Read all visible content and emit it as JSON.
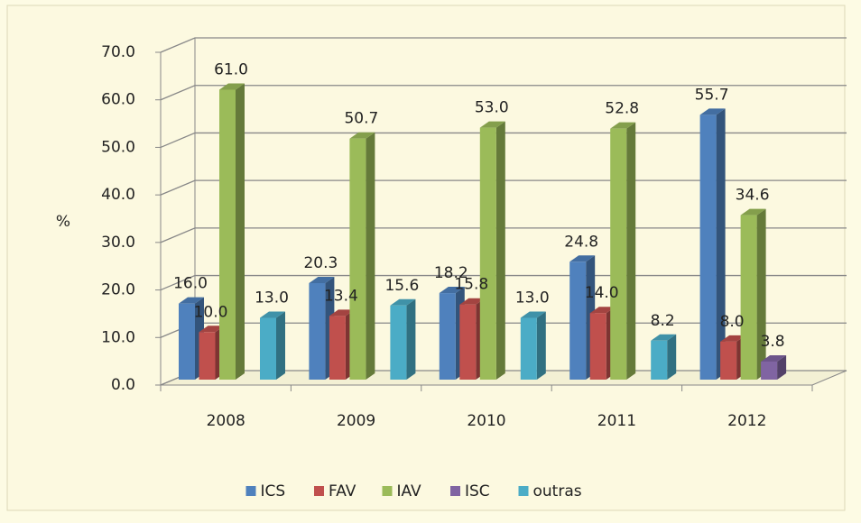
{
  "chart_data": {
    "type": "bar3d",
    "y_label": "%",
    "categories": [
      "2008",
      "2009",
      "2010",
      "2011",
      "2012"
    ],
    "series": [
      {
        "name": "ICS",
        "color": "#4f81bd",
        "values": [
          16.0,
          20.3,
          18.2,
          24.8,
          55.7
        ],
        "value_labels": [
          "16.0",
          "20.3",
          "18.2",
          "24.8",
          "55.7"
        ]
      },
      {
        "name": "FAV",
        "color": "#c0504d",
        "values": [
          10.0,
          13.4,
          15.8,
          14.0,
          8.0
        ],
        "value_labels": [
          "10.0",
          "13.4",
          "15.8",
          "14.0",
          "8.0"
        ]
      },
      {
        "name": "IAV",
        "color": "#9bbb59",
        "values": [
          61.0,
          50.7,
          53.0,
          52.8,
          34.6
        ],
        "value_labels": [
          "61.0",
          "50.7",
          "53.0",
          "52.8",
          "34.6"
        ]
      },
      {
        "name": "ISC",
        "color": "#8064a2",
        "values": [
          null,
          null,
          null,
          null,
          3.8
        ],
        "value_labels": [
          null,
          null,
          null,
          null,
          "3.8"
        ]
      },
      {
        "name": "outras",
        "color": "#4bacc6",
        "values": [
          13.0,
          15.6,
          13.0,
          8.2,
          null
        ],
        "value_labels": [
          "13.0",
          "15.6",
          "13.0",
          "8.2",
          null
        ]
      }
    ],
    "ylim": [
      0,
      70
    ],
    "yticks": [
      {
        "value": 0,
        "label": "0.0"
      },
      {
        "value": 10,
        "label": "10.0"
      },
      {
        "value": 20,
        "label": "20.0"
      },
      {
        "value": 30,
        "label": "30.0"
      },
      {
        "value": 40,
        "label": "40.0"
      },
      {
        "value": 50,
        "label": "50.0"
      },
      {
        "value": 60,
        "label": "60.0"
      },
      {
        "value": 70,
        "label": "70.0"
      }
    ],
    "grid": true,
    "legend": "bottom"
  }
}
